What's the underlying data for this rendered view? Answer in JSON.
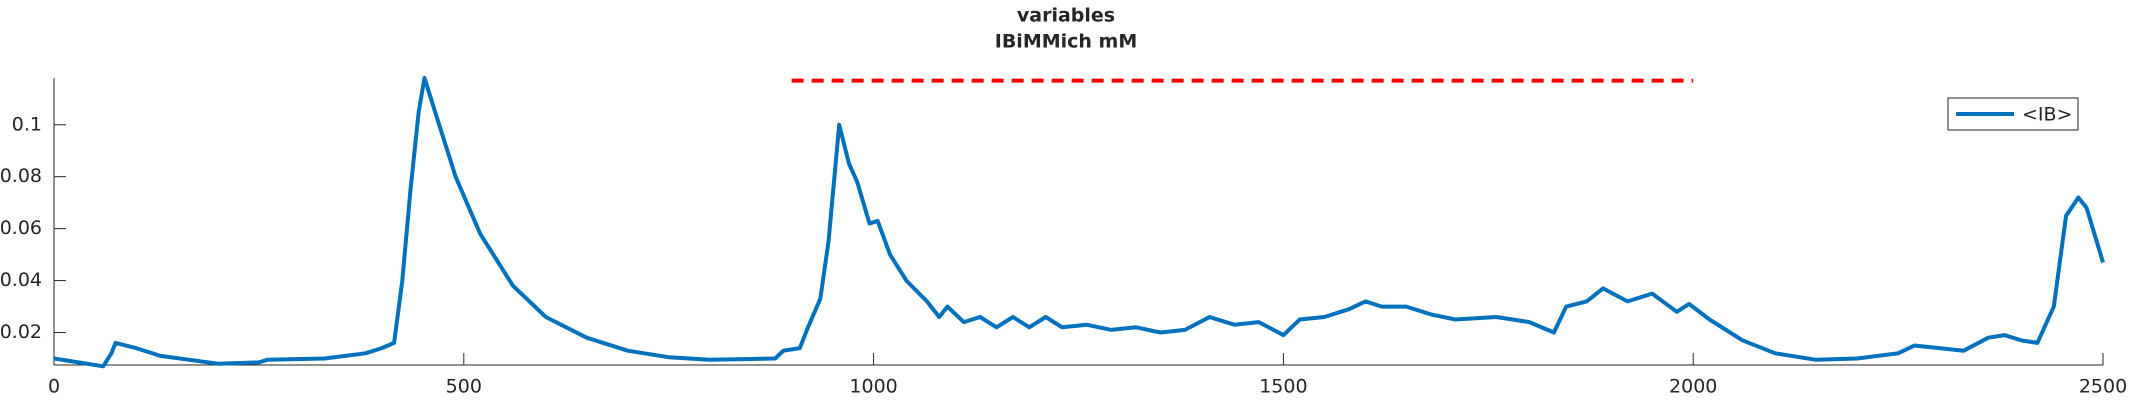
{
  "chart_data": {
    "type": "line",
    "title": [
      "variables",
      "IBiMMich mM"
    ],
    "x": [
      0,
      30,
      60,
      70,
      75,
      100,
      130,
      200,
      250,
      260,
      330,
      380,
      400,
      415,
      425,
      435,
      445,
      452,
      465,
      490,
      520,
      560,
      600,
      650,
      700,
      750,
      800,
      880,
      890,
      910,
      920,
      935,
      945,
      958,
      970,
      980,
      995,
      1005,
      1020,
      1040,
      1065,
      1080,
      1090,
      1110,
      1130,
      1150,
      1170,
      1190,
      1210,
      1230,
      1260,
      1290,
      1320,
      1350,
      1380,
      1410,
      1440,
      1470,
      1500,
      1520,
      1550,
      1580,
      1600,
      1620,
      1650,
      1680,
      1710,
      1760,
      1800,
      1830,
      1845,
      1870,
      1890,
      1920,
      1950,
      1980,
      1995,
      2020,
      2060,
      2100,
      2150,
      2200,
      2250,
      2270,
      2300,
      2330,
      2360,
      2380,
      2400,
      2420,
      2440,
      2455,
      2470,
      2480,
      2500
    ],
    "series": [
      {
        "name": "<IB>",
        "color": "#0072bd",
        "values": [
          0.01,
          0.0085,
          0.007,
          0.012,
          0.016,
          0.014,
          0.011,
          0.008,
          0.0085,
          0.0095,
          0.01,
          0.012,
          0.014,
          0.016,
          0.04,
          0.075,
          0.105,
          0.118,
          0.105,
          0.08,
          0.058,
          0.038,
          0.026,
          0.018,
          0.013,
          0.0105,
          0.0095,
          0.01,
          0.013,
          0.014,
          0.022,
          0.033,
          0.055,
          0.1,
          0.085,
          0.078,
          0.062,
          0.063,
          0.05,
          0.04,
          0.032,
          0.026,
          0.03,
          0.024,
          0.026,
          0.022,
          0.026,
          0.022,
          0.026,
          0.022,
          0.023,
          0.021,
          0.022,
          0.02,
          0.021,
          0.026,
          0.023,
          0.024,
          0.019,
          0.025,
          0.026,
          0.029,
          0.032,
          0.03,
          0.03,
          0.027,
          0.025,
          0.026,
          0.024,
          0.02,
          0.03,
          0.032,
          0.037,
          0.032,
          0.035,
          0.028,
          0.031,
          0.025,
          0.017,
          0.012,
          0.0095,
          0.01,
          0.012,
          0.015,
          0.014,
          0.013,
          0.018,
          0.019,
          0.017,
          0.016,
          0.03,
          0.065,
          0.072,
          0.068,
          0.047
        ]
      }
    ],
    "marker": {
      "x": [
        900,
        2000
      ],
      "y": 0.117,
      "color": "#ff0000"
    },
    "xlim": [
      0,
      2500
    ],
    "xticks": [
      0,
      500,
      1000,
      1500,
      2000,
      2500
    ],
    "ylim": [
      0.0075,
      0.118
    ],
    "yticks": [
      0.02,
      0.04,
      0.06,
      0.08,
      0.1
    ],
    "legend": "top-right"
  }
}
